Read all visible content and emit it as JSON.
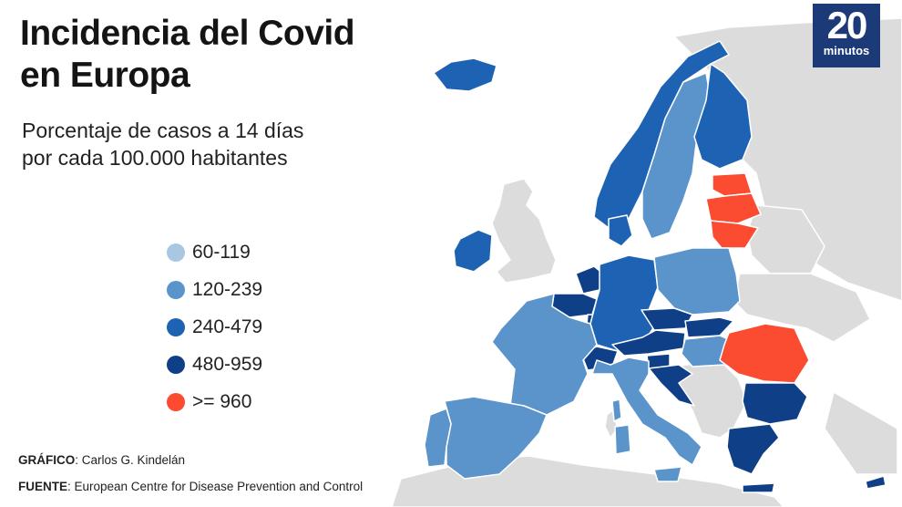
{
  "title_line1": "Incidencia del Covid",
  "title_line2": "en Europa",
  "subtitle_line1": "Porcentaje de casos a 14 días",
  "subtitle_line2": "por cada 100.000 habitantes",
  "legend": [
    {
      "label": "60-119",
      "color": "#a9c6e2"
    },
    {
      "label": "120-239",
      "color": "#5b93cb"
    },
    {
      "label": "240-479",
      "color": "#1e63b3"
    },
    {
      "label": "480-959",
      "color": "#0f3f87"
    },
    {
      "label": ">= 960",
      "color": "#fb4b30"
    }
  ],
  "credits": {
    "grafico_label": "GRÁFICO",
    "grafico_value": ": Carlos G. Kindelán",
    "fuente_label": "FUENTE",
    "fuente_value": ": European Centre for Disease Prevention and Control"
  },
  "logo": {
    "number": "20",
    "word": "minutos"
  },
  "colors": {
    "no_data": "#dcdcdc",
    "border": "#ffffff"
  },
  "regions": [
    {
      "name": "Iceland",
      "category": "240-479"
    },
    {
      "name": "Ireland",
      "category": "240-479"
    },
    {
      "name": "United Kingdom",
      "category": "no-data"
    },
    {
      "name": "Norway",
      "category": "240-479"
    },
    {
      "name": "Sweden",
      "category": "120-239"
    },
    {
      "name": "Finland",
      "category": "240-479"
    },
    {
      "name": "Denmark",
      "category": "240-479"
    },
    {
      "name": "Estonia",
      "category": ">= 960"
    },
    {
      "name": "Latvia",
      "category": ">= 960"
    },
    {
      "name": "Lithuania",
      "category": ">= 960"
    },
    {
      "name": "Netherlands",
      "category": "480-959"
    },
    {
      "name": "Belgium",
      "category": "480-959"
    },
    {
      "name": "Luxembourg",
      "category": "480-959"
    },
    {
      "name": "Germany",
      "category": "240-479"
    },
    {
      "name": "Poland",
      "category": "120-239"
    },
    {
      "name": "Czechia",
      "category": "480-959"
    },
    {
      "name": "Slovakia",
      "category": "480-959"
    },
    {
      "name": "Austria",
      "category": "480-959"
    },
    {
      "name": "Switzerland",
      "category": "480-959"
    },
    {
      "name": "Hungary",
      "category": "120-239"
    },
    {
      "name": "Slovenia",
      "category": "480-959"
    },
    {
      "name": "Croatia",
      "category": "480-959"
    },
    {
      "name": "France",
      "category": "120-239"
    },
    {
      "name": "Spain",
      "category": "120-239"
    },
    {
      "name": "Portugal",
      "category": "120-239"
    },
    {
      "name": "Italy",
      "category": "120-239"
    },
    {
      "name": "Romania",
      "category": ">= 960"
    },
    {
      "name": "Bulgaria",
      "category": "480-959"
    },
    {
      "name": "Greece",
      "category": "480-959"
    },
    {
      "name": "Cyprus",
      "category": "480-959"
    },
    {
      "name": "Russia",
      "category": "no-data"
    },
    {
      "name": "Belarus",
      "category": "no-data"
    },
    {
      "name": "Ukraine",
      "category": "no-data"
    },
    {
      "name": "Balkans",
      "category": "no-data"
    },
    {
      "name": "North Africa",
      "category": "no-data"
    }
  ]
}
